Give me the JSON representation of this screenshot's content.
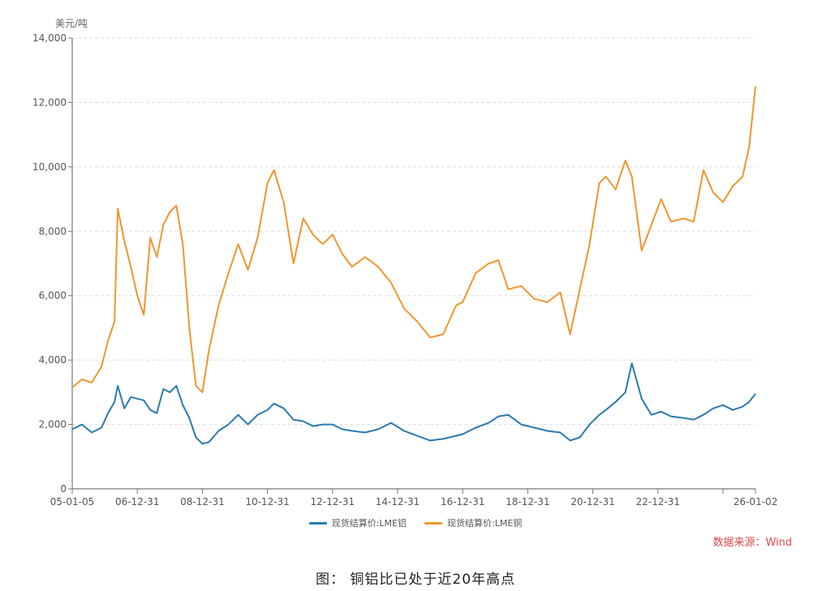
{
  "chart_data": {
    "type": "line",
    "title": "",
    "caption": "图： 铜铝比已处于近20年高点",
    "ylabel": "美元/吨",
    "xlabel": "",
    "ylim": [
      0,
      14000
    ],
    "yticks": [
      0,
      2000,
      4000,
      6000,
      8000,
      10000,
      12000,
      14000
    ],
    "ytick_labels": [
      "0",
      "2,000",
      "4,000",
      "6,000",
      "8,000",
      "10,000",
      "12,000",
      "14,000"
    ],
    "xtick_labels": [
      "05-01-05",
      "06-12-31",
      "08-12-31",
      "10-12-31",
      "12-12-31",
      "14-12-31",
      "16-12-31",
      "18-12-31",
      "20-12-31",
      "22-12-31",
      "",
      "26-01-02"
    ],
    "xtick_years": [
      2005.0,
      2007.0,
      2009.0,
      2011.0,
      2013.0,
      2015.0,
      2017.0,
      2019.0,
      2021.0,
      2023.0,
      2025.0,
      2026.0
    ],
    "grid": "horizontal dashed",
    "legend_position": "bottom",
    "source": "数据来源：Wind",
    "x": [
      2005.0,
      2005.3,
      2005.6,
      2005.9,
      2006.1,
      2006.3,
      2006.4,
      2006.6,
      2006.8,
      2007.0,
      2007.2,
      2007.4,
      2007.6,
      2007.8,
      2008.0,
      2008.2,
      2008.4,
      2008.6,
      2008.8,
      2009.0,
      2009.2,
      2009.5,
      2009.8,
      2010.1,
      2010.4,
      2010.7,
      2011.0,
      2011.2,
      2011.5,
      2011.8,
      2012.1,
      2012.4,
      2012.7,
      2013.0,
      2013.3,
      2013.6,
      2014.0,
      2014.4,
      2014.8,
      2015.2,
      2015.6,
      2016.0,
      2016.4,
      2016.8,
      2017.0,
      2017.4,
      2017.8,
      2018.1,
      2018.4,
      2018.8,
      2019.2,
      2019.6,
      2020.0,
      2020.3,
      2020.6,
      2020.9,
      2021.2,
      2021.4,
      2021.7,
      2022.0,
      2022.2,
      2022.5,
      2022.8,
      2023.1,
      2023.4,
      2023.8,
      2024.1,
      2024.4,
      2024.7,
      2025.0,
      2025.3,
      2025.6,
      2025.8,
      2026.0
    ],
    "series": [
      {
        "name": "现货结算价:LME铝",
        "color": "#2a7ab0",
        "values": [
          1850,
          2000,
          1750,
          1900,
          2350,
          2700,
          3200,
          2500,
          2850,
          2800,
          2750,
          2450,
          2350,
          3100,
          3000,
          3200,
          2600,
          2200,
          1600,
          1400,
          1450,
          1800,
          2000,
          2300,
          2000,
          2300,
          2450,
          2650,
          2500,
          2150,
          2100,
          1950,
          2000,
          2000,
          1850,
          1800,
          1750,
          1850,
          2050,
          1800,
          1650,
          1500,
          1550,
          1650,
          1700,
          1900,
          2050,
          2250,
          2300,
          2000,
          1900,
          1800,
          1750,
          1500,
          1600,
          2000,
          2300,
          2450,
          2700,
          3000,
          3900,
          2800,
          2300,
          2400,
          2250,
          2200,
          2150,
          2300,
          2500,
          2600,
          2450,
          2550,
          2700,
          2950
        ]
      },
      {
        "name": "现货结算价:LME铜",
        "color": "#f0962e",
        "values": [
          3150,
          3400,
          3300,
          3800,
          4600,
          5200,
          8700,
          7700,
          6900,
          6000,
          5400,
          7800,
          7200,
          8200,
          8600,
          8800,
          7600,
          5000,
          3200,
          3000,
          4300,
          5700,
          6700,
          7600,
          6800,
          7800,
          9500,
          9900,
          8900,
          7000,
          8400,
          7900,
          7600,
          7900,
          7300,
          6900,
          7200,
          6900,
          6400,
          5600,
          5200,
          4700,
          4800,
          5700,
          5800,
          6700,
          7000,
          7100,
          6200,
          6300,
          5900,
          5800,
          6100,
          4800,
          6200,
          7600,
          9500,
          9700,
          9300,
          10200,
          9700,
          7400,
          8200,
          9000,
          8300,
          8400,
          8300,
          9900,
          9200,
          8900,
          9400,
          9700,
          10600,
          12500
        ]
      }
    ]
  },
  "legend": {
    "items": [
      {
        "label": "现货结算价:LME铝",
        "color": "#2a7ab0"
      },
      {
        "label": "现货结算价:LME铜",
        "color": "#f0962e"
      }
    ]
  }
}
